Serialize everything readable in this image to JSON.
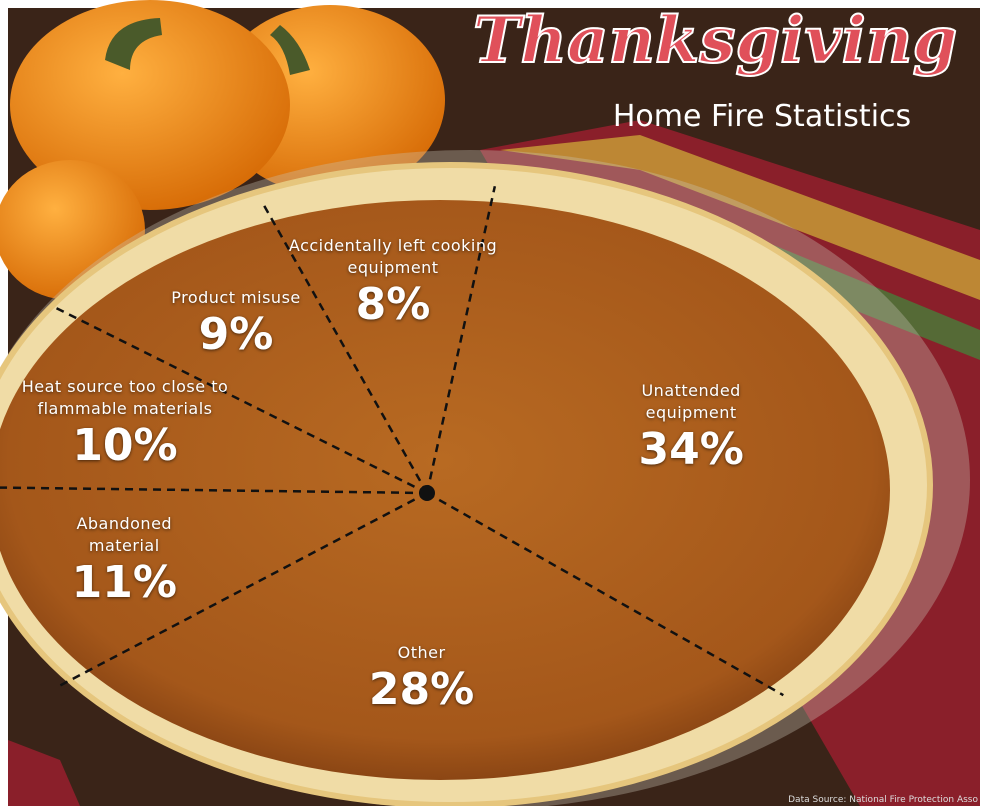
{
  "chart_data": {
    "type": "pie",
    "title": "Thanksgiving",
    "subtitle": "Home Fire Statistics",
    "categories": [
      "Unattended equipment",
      "Other",
      "Abandoned material",
      "Heat source too close to flammable materials",
      "Product misuse",
      "Accidentally left cooking equipment"
    ],
    "values": [
      34,
      28,
      11,
      10,
      9,
      8
    ],
    "value_labels": [
      "34%",
      "28%",
      "11%",
      "10%",
      "9%",
      "8%"
    ],
    "source": "Data Source: National Fire Protection Asso"
  }
}
